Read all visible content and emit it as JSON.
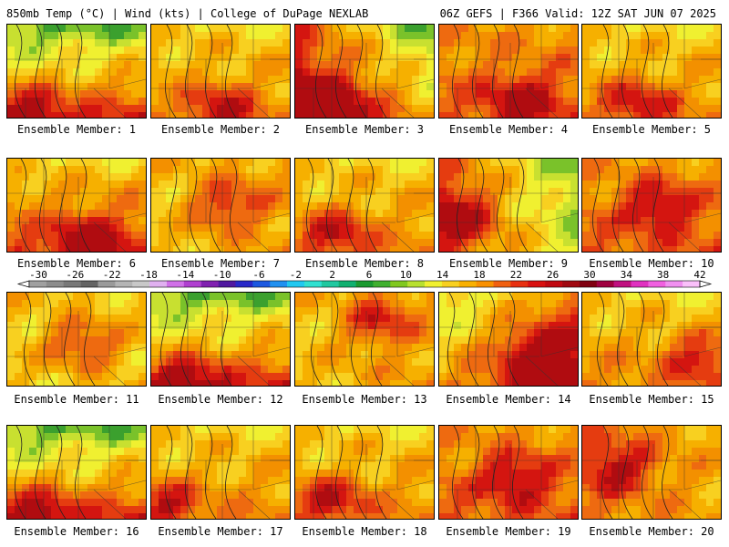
{
  "header": {
    "left": "850mb Temp (°C) | Wind (kts) | College of DuPage NEXLAB",
    "right": "06Z GEFS | F366 Valid: 12Z SAT JUN 07 2025"
  },
  "members": [
    {
      "label": "Ensemble Member: 1",
      "mode": "cool_north",
      "warm_spot": [
        0.15,
        0.95
      ]
    },
    {
      "label": "Ensemble Member: 2",
      "mode": "warm_mix",
      "warm_spot": [
        0.5,
        0.9
      ]
    },
    {
      "label": "Ensemble Member: 3",
      "mode": "cool_ne",
      "warm_spot": [
        0.2,
        0.9
      ]
    },
    {
      "label": "Ensemble Member: 4",
      "mode": "hot",
      "warm_spot": [
        0.6,
        0.8
      ]
    },
    {
      "label": "Ensemble Member: 5",
      "mode": "warm_mix",
      "warm_spot": [
        0.4,
        0.85
      ]
    },
    {
      "label": "Ensemble Member: 6",
      "mode": "hot_south",
      "warm_spot": [
        0.6,
        0.85
      ]
    },
    {
      "label": "Ensemble Member: 7",
      "mode": "hot_diag",
      "warm_spot": [
        0.55,
        0.5
      ]
    },
    {
      "label": "Ensemble Member: 8",
      "mode": "warm_mix",
      "warm_spot": [
        0.3,
        0.8
      ]
    },
    {
      "label": "Ensemble Member: 9",
      "mode": "cool_east",
      "warm_spot": [
        0.15,
        0.6
      ]
    },
    {
      "label": "Ensemble Member: 10",
      "mode": "hot",
      "warm_spot": [
        0.55,
        0.5
      ]
    },
    {
      "label": "Ensemble Member: 11",
      "mode": "hot_center",
      "warm_spot": [
        0.55,
        0.55
      ]
    },
    {
      "label": "Ensemble Member: 12",
      "mode": "cool_north",
      "warm_spot": [
        0.25,
        0.95
      ]
    },
    {
      "label": "Ensemble Member: 13",
      "mode": "hot_diag",
      "warm_spot": [
        0.6,
        0.3
      ]
    },
    {
      "label": "Ensemble Member: 14",
      "mode": "cool_nw",
      "warm_spot": [
        0.7,
        0.65
      ]
    },
    {
      "label": "Ensemble Member: 15",
      "mode": "warm_mix",
      "warm_spot": [
        0.85,
        0.7
      ]
    },
    {
      "label": "Ensemble Member: 16",
      "mode": "cool_north",
      "warm_spot": [
        0.2,
        0.95
      ]
    },
    {
      "label": "Ensemble Member: 17",
      "mode": "warm_mix",
      "warm_spot": [
        0.1,
        0.85
      ]
    },
    {
      "label": "Ensemble Member: 18",
      "mode": "warm_mix",
      "warm_spot": [
        0.25,
        0.8
      ]
    },
    {
      "label": "Ensemble Member: 19",
      "mode": "hot",
      "warm_spot": [
        0.55,
        0.55
      ]
    },
    {
      "label": "Ensemble Member: 20",
      "mode": "hot_west",
      "warm_spot": [
        0.25,
        0.45
      ]
    }
  ],
  "colorbar": {
    "ticks": [
      "-30",
      "-26",
      "-22",
      "-18",
      "-14",
      "-10",
      "-6",
      "-2",
      "2",
      "6",
      "10",
      "14",
      "18",
      "22",
      "26",
      "30",
      "34",
      "38",
      "42"
    ],
    "colors": [
      "#a0a0a0",
      "#8c8c8c",
      "#787878",
      "#646464",
      "#9a9a9a",
      "#b4b4b4",
      "#c8c8c8",
      "#e0b0f0",
      "#d070e8",
      "#b040d0",
      "#8020b0",
      "#5018a0",
      "#2828c8",
      "#1c58e0",
      "#2090f0",
      "#20c8f0",
      "#30e0d0",
      "#20c8a0",
      "#10b070",
      "#1a9a30",
      "#40b030",
      "#80c820",
      "#b8e030",
      "#f0f030",
      "#f8d020",
      "#f8b000",
      "#f89000",
      "#f06010",
      "#e83010",
      "#d81010",
      "#c00810",
      "#a00810",
      "#800010",
      "#a00040",
      "#c01080",
      "#e030c0",
      "#f060e0",
      "#f090f0",
      "#fac0fa"
    ]
  }
}
